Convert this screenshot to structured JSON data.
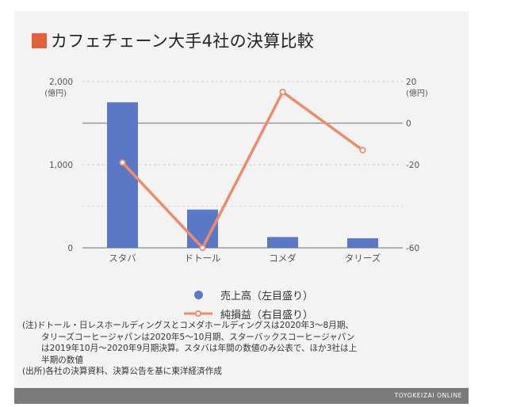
{
  "title": "カフェチェーン大手4社の決算比較",
  "colors": {
    "bar": "#5b78c7",
    "line": "#ee8c6a",
    "title_square": "#e0613a"
  },
  "chart_data": {
    "type": "bar+line",
    "categories": [
      "スタバ",
      "ドトール",
      "コメダ",
      "タリーズ"
    ],
    "series": [
      {
        "name": "売上高（左目盛り）",
        "type": "bar",
        "axis": "left",
        "values": [
          1750,
          460,
          130,
          115
        ]
      },
      {
        "name": "純損益（右目盛り）",
        "type": "line",
        "axis": "right",
        "values": [
          -19,
          -60,
          15,
          -13
        ]
      }
    ],
    "y_left": {
      "range": [
        0,
        2000
      ],
      "ticks": [
        0,
        1000,
        2000
      ],
      "tick_labels": [
        "0",
        "1,000",
        "2,000"
      ],
      "unit": "(億円)"
    },
    "y_right": {
      "range": [
        -60,
        20
      ],
      "ticks": [
        -60,
        -20,
        0,
        20
      ],
      "tick_labels": [
        "-60",
        "-20",
        "0",
        "20"
      ],
      "unit": "(億円)"
    },
    "grid": true,
    "legend_position": "bottom"
  },
  "legend": [
    "売上高（左目盛り）",
    "純損益（右目盛り）"
  ],
  "notes": [
    "(注)ドトール・日レスホールディングスとコメダホールディングスは2020年3～8月期、",
    "タリーズコーヒージャパンは2020年5～10月期、スターバックスコーヒージャパン",
    "は2019年10月～2020年9月期決算。スタバは年間の数値のみ公表で、ほか3社は上",
    "半期の数値",
    "(出所)各社の決算資料、決算公告を基に東洋経済作成"
  ],
  "footer": "TOYOKEIZAI ONLINE"
}
